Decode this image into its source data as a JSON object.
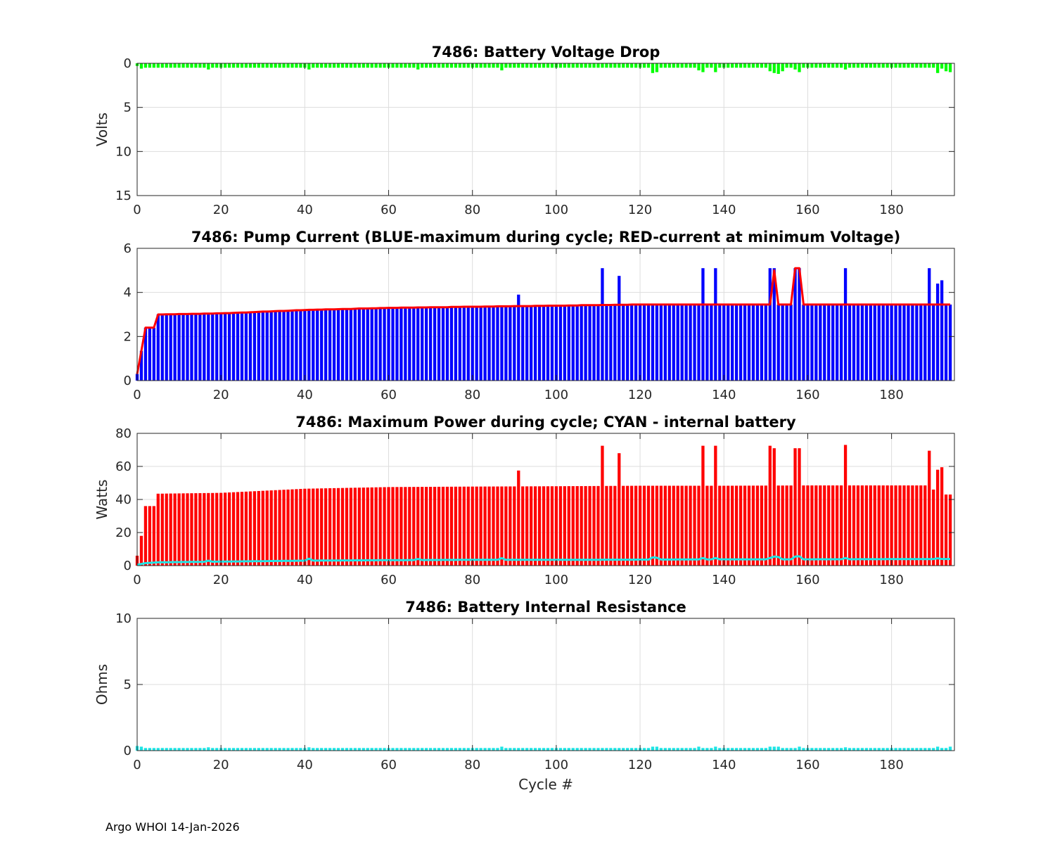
{
  "footer": "Argo WHOI 14-Jan-2026",
  "colors": {
    "green": "#00ff00",
    "blue": "#0000ff",
    "red": "#ff0000",
    "cyan": "#1ee5e5",
    "grid": "#dddddd"
  },
  "chart_data": [
    {
      "type": "bar",
      "title": "7486: Battery Voltage Drop",
      "xlabel": "",
      "ylabel": "Volts",
      "xlim": [
        0,
        195
      ],
      "ylim": [
        0,
        15
      ],
      "y_reversed": true,
      "x_ticks": [
        0,
        20,
        40,
        60,
        80,
        100,
        120,
        140,
        160,
        180
      ],
      "y_ticks": [
        0,
        5,
        10,
        15
      ],
      "grid": true,
      "series": [
        {
          "color": "#00ff00",
          "style": "bars",
          "defaults": {
            "x_start": 0,
            "x_end": 194,
            "value": 0.5
          },
          "overrides": {
            "0": 0.3,
            "1": 0.6,
            "17": 0.7,
            "41": 0.7,
            "67": 0.7,
            "87": 0.8,
            "123": 1.1,
            "124": 1.0,
            "134": 0.8,
            "135": 1.0,
            "138": 1.0,
            "151": 0.9,
            "152": 1.1,
            "153": 1.2,
            "154": 0.9,
            "157": 0.7,
            "158": 1.0,
            "169": 0.7,
            "191": 1.1,
            "192": 0.6,
            "193": 0.9,
            "194": 1.0
          }
        }
      ]
    },
    {
      "type": "bar",
      "title": "7486: Pump Current (BLUE-maximum during cycle; RED-current at minimum Voltage)",
      "xlabel": "",
      "ylabel": "",
      "xlim": [
        0,
        195
      ],
      "ylim": [
        0,
        6
      ],
      "x_ticks": [
        0,
        20,
        40,
        60,
        80,
        100,
        120,
        140,
        160,
        180
      ],
      "y_ticks": [
        0,
        2,
        4,
        6
      ],
      "grid": true,
      "series": [
        {
          "color": "#0000ff",
          "style": "bars",
          "ramp": [
            [
              0,
              0.3
            ],
            [
              2,
              2.4
            ],
            [
              4,
              2.4
            ],
            [
              5,
              3.0
            ],
            [
              20,
              3.05
            ],
            [
              40,
              3.2
            ],
            [
              60,
              3.3
            ],
            [
              80,
              3.35
            ],
            [
              100,
              3.4
            ],
            [
              120,
              3.45
            ],
            [
              140,
              3.45
            ],
            [
              160,
              3.45
            ],
            [
              180,
              3.45
            ],
            [
              194,
              3.45
            ]
          ],
          "overrides": {
            "91": 3.9,
            "111": 5.1,
            "115": 4.75,
            "135": 5.1,
            "138": 5.1,
            "151": 5.1,
            "152": 5.1,
            "157": 5.1,
            "158": 5.1,
            "169": 5.1,
            "189": 5.1,
            "191": 4.4,
            "192": 4.55
          }
        },
        {
          "color": "#ff0000",
          "style": "line",
          "ramp": [
            [
              0,
              0.3
            ],
            [
              2,
              2.4
            ],
            [
              4,
              2.4
            ],
            [
              5,
              3.0
            ],
            [
              20,
              3.05
            ],
            [
              40,
              3.2
            ],
            [
              60,
              3.3
            ],
            [
              80,
              3.35
            ],
            [
              100,
              3.4
            ],
            [
              120,
              3.45
            ],
            [
              140,
              3.45
            ],
            [
              160,
              3.45
            ],
            [
              180,
              3.45
            ],
            [
              194,
              3.45
            ]
          ],
          "overrides": {
            "152": 5.0,
            "157": 5.1,
            "158": 5.1
          }
        }
      ]
    },
    {
      "type": "bar",
      "title": "7486: Maximum Power during cycle; CYAN - internal battery",
      "xlabel": "",
      "ylabel": "Watts",
      "xlim": [
        0,
        195
      ],
      "ylim": [
        0,
        80
      ],
      "x_ticks": [
        0,
        20,
        40,
        60,
        80,
        100,
        120,
        140,
        160,
        180
      ],
      "y_ticks": [
        0,
        20,
        40,
        60,
        80
      ],
      "grid": true,
      "series": [
        {
          "color": "#ff0000",
          "style": "bars",
          "ramp": [
            [
              0,
              6
            ],
            [
              1,
              18
            ],
            [
              2,
              36
            ],
            [
              4,
              36
            ],
            [
              5,
              43.5
            ],
            [
              20,
              44
            ],
            [
              40,
              46.5
            ],
            [
              60,
              47.5
            ],
            [
              80,
              47.8
            ],
            [
              100,
              48
            ],
            [
              120,
              48.3
            ],
            [
              140,
              48.3
            ],
            [
              160,
              48.5
            ],
            [
              180,
              48.5
            ],
            [
              192,
              48.5
            ],
            [
              193,
              43
            ],
            [
              194,
              43
            ]
          ],
          "overrides": {
            "91": 57.5,
            "111": 72.5,
            "115": 68,
            "135": 72.5,
            "138": 72.5,
            "151": 72.5,
            "152": 71,
            "157": 71,
            "158": 71,
            "169": 73,
            "189": 69.5,
            "190": 46,
            "191": 58,
            "192": 59.5
          }
        },
        {
          "color": "#1ee5e5",
          "style": "line",
          "ramp": [
            [
              0,
              0.5
            ],
            [
              2,
              1.5
            ],
            [
              5,
              2
            ],
            [
              20,
              2.4
            ],
            [
              40,
              3
            ],
            [
              60,
              3.3
            ],
            [
              80,
              3.5
            ],
            [
              100,
              3.5
            ],
            [
              120,
              3.6
            ],
            [
              140,
              3.8
            ],
            [
              160,
              3.8
            ],
            [
              180,
              3.9
            ],
            [
              194,
              4
            ]
          ],
          "overrides": {
            "17": 3,
            "41": 4.2,
            "67": 4,
            "87": 4.5,
            "123": 5,
            "124": 4.8,
            "135": 4.6,
            "138": 4.6,
            "151": 4.6,
            "152": 5.5,
            "153": 5.2,
            "157": 5.5,
            "158": 5.6,
            "169": 4.6,
            "191": 4.4
          }
        }
      ]
    },
    {
      "type": "bar",
      "title": "7486: Battery Internal Resistance",
      "xlabel": "Cycle #",
      "ylabel": "Ohms",
      "xlim": [
        0,
        195
      ],
      "ylim": [
        0,
        10
      ],
      "x_ticks": [
        0,
        20,
        40,
        60,
        80,
        100,
        120,
        140,
        160,
        180
      ],
      "y_ticks": [
        0,
        5,
        10
      ],
      "grid": true,
      "series": [
        {
          "color": "#1ee5e5",
          "style": "bars",
          "defaults": {
            "x_start": 0,
            "x_end": 194,
            "value": 0.2
          },
          "overrides": {
            "0": 0.35,
            "1": 0.3,
            "17": 0.25,
            "41": 0.25,
            "87": 0.3,
            "123": 0.3,
            "124": 0.3,
            "134": 0.3,
            "138": 0.3,
            "151": 0.3,
            "152": 0.3,
            "153": 0.3,
            "158": 0.3,
            "169": 0.25,
            "191": 0.3,
            "194": 0.3
          }
        }
      ]
    }
  ]
}
